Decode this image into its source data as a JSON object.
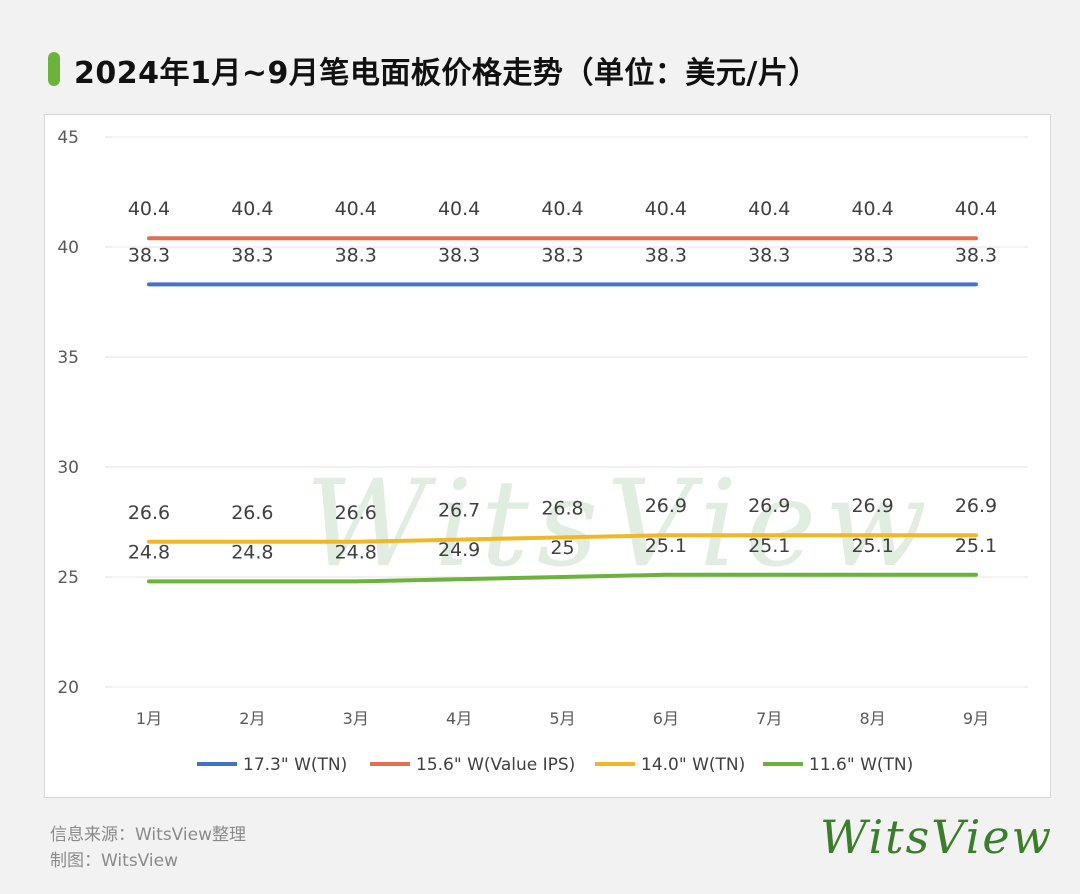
{
  "title": "2024年1月~9月笔电面板价格走势（单位：美元/片）",
  "watermark": "WitsView",
  "footer": {
    "source": "信息来源：WitsView整理",
    "credit": "制图：WitsView"
  },
  "logo_text": "WitsView",
  "colors": {
    "accent": "#6bb33a",
    "series": [
      "#4472c4",
      "#e07050",
      "#f0b828",
      "#6bb33a"
    ]
  },
  "chart_data": {
    "type": "line",
    "categories": [
      "1月",
      "2月",
      "3月",
      "4月",
      "5月",
      "6月",
      "7月",
      "8月",
      "9月"
    ],
    "series": [
      {
        "name": "17.3\" W(TN)",
        "values": [
          38.3,
          38.3,
          38.3,
          38.3,
          38.3,
          38.3,
          38.3,
          38.3,
          38.3
        ]
      },
      {
        "name": "15.6\" W(Value IPS)",
        "values": [
          40.4,
          40.4,
          40.4,
          40.4,
          40.4,
          40.4,
          40.4,
          40.4,
          40.4
        ]
      },
      {
        "name": "14.0\" W(TN)",
        "values": [
          26.6,
          26.6,
          26.6,
          26.7,
          26.8,
          26.9,
          26.9,
          26.9,
          26.9
        ]
      },
      {
        "name": "11.6\" W(TN)",
        "values": [
          24.8,
          24.8,
          24.8,
          24.9,
          25,
          25.1,
          25.1,
          25.1,
          25.1
        ]
      }
    ],
    "ylim": [
      20,
      45
    ],
    "yticks": [
      20,
      25,
      30,
      35,
      40,
      45
    ],
    "grid": true,
    "legend": "bottom"
  }
}
